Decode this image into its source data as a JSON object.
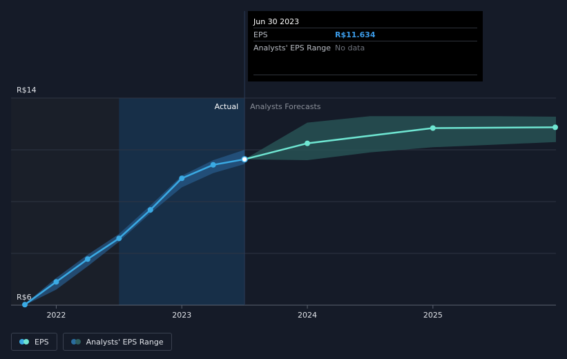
{
  "chart_data": {
    "type": "line",
    "currency_prefix": "R$",
    "ylim": [
      6,
      14
    ],
    "y_ticks": [
      {
        "value": 14,
        "label": "R$14"
      },
      {
        "value": 6,
        "label": "R$6"
      }
    ],
    "x_ticks": [
      {
        "value": 2022.0,
        "label": "2022"
      },
      {
        "value": 2023.0,
        "label": "2023"
      },
      {
        "value": 2024.0,
        "label": "2024"
      },
      {
        "value": 2025.0,
        "label": "2025"
      }
    ],
    "xlim": [
      2021.64,
      2025.98
    ],
    "divider_x": 2023.5,
    "shaded_start_x": 2022.5,
    "labels": {
      "actual": "Actual",
      "forecast": "Analysts Forecasts"
    },
    "series": [
      {
        "name": "EPS",
        "kind": "actual",
        "color": "#3aaae4",
        "points": [
          [
            2021.75,
            6.02
          ],
          [
            2022.0,
            6.9
          ],
          [
            2022.25,
            7.78
          ],
          [
            2022.5,
            8.58
          ],
          [
            2022.75,
            9.68
          ],
          [
            2023.0,
            10.9
          ],
          [
            2023.25,
            11.42
          ],
          [
            2023.5,
            11.634
          ]
        ]
      },
      {
        "name": "EPS Forecast",
        "kind": "forecast",
        "color": "#6fe6d2",
        "points": [
          [
            2023.5,
            11.634
          ],
          [
            2024.0,
            12.25
          ],
          [
            2025.0,
            12.84
          ],
          [
            2025.98,
            12.87
          ]
        ]
      }
    ],
    "range_actual": {
      "x": [
        2021.75,
        2022.0,
        2022.25,
        2022.5,
        2022.75,
        2023.0,
        2023.25,
        2023.5
      ],
      "lower": [
        6.0,
        6.6,
        7.5,
        8.45,
        9.55,
        10.55,
        11.1,
        11.45
      ],
      "upper": [
        6.05,
        7.05,
        7.95,
        8.75,
        9.85,
        11.0,
        11.6,
        12.0
      ]
    },
    "range_forecast": {
      "x": [
        2023.5,
        2024.0,
        2024.5,
        2025.0,
        2025.5,
        2025.98
      ],
      "lower": [
        11.634,
        11.6,
        11.9,
        12.1,
        12.2,
        12.3
      ],
      "upper": [
        11.634,
        13.05,
        13.3,
        13.3,
        13.3,
        13.28
      ]
    },
    "tooltip": {
      "date": "Jun 30 2023",
      "rows": [
        {
          "label": "EPS",
          "value": "R$11.634"
        },
        {
          "label": "Analysts' EPS Range",
          "value": "No data"
        }
      ]
    },
    "legend": [
      {
        "label": "EPS"
      },
      {
        "label": "Analysts' EPS Range"
      }
    ],
    "colors": {
      "background": "#151b28",
      "past_region": "#1a1f29",
      "highlight_region": "#172f48",
      "gridline": "#2f3644",
      "axis": "#5c6370",
      "range_actual": "#275a88",
      "range_forecast": "#2a5a5a",
      "tick_text": "#e0e3e8",
      "muted_text": "#8b909a"
    }
  }
}
